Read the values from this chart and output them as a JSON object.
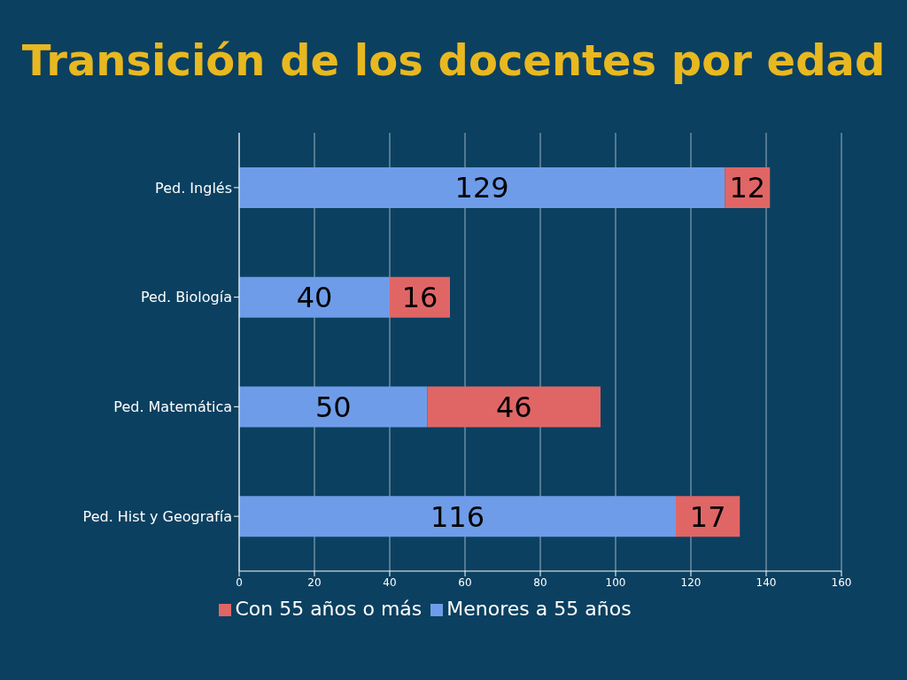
{
  "chart_data": {
    "type": "bar",
    "orientation": "horizontal",
    "stacked": true,
    "title": "Transición de los docentes por edad",
    "categories": [
      "Ped. Inglés",
      "Ped. Biología",
      "Ped. Matemática",
      "Ped. Hist y Geografía"
    ],
    "series": [
      {
        "name": "Menores a 55 años",
        "color": "#6f9ce8",
        "values": [
          129,
          40,
          50,
          116
        ]
      },
      {
        "name": "Con 55 años o más",
        "color": "#e06666",
        "values": [
          12,
          16,
          46,
          17
        ]
      }
    ],
    "xlim": [
      0,
      160
    ],
    "xticks": [
      0,
      20,
      40,
      60,
      80,
      100,
      120,
      140,
      160
    ],
    "grid": "x",
    "legend": "bottom",
    "data_labels": true
  }
}
